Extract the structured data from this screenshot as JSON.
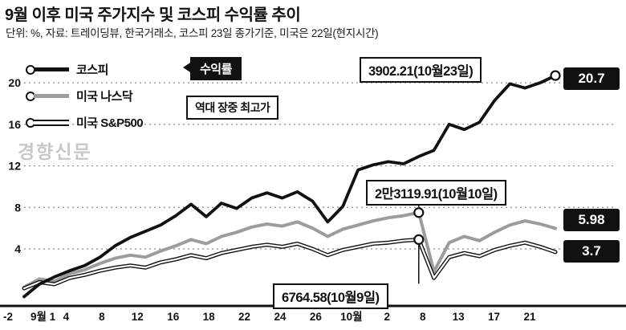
{
  "header": {
    "title": "9월 이후 미국 주가지수 및 코스피 수익률 추이",
    "subtitle": "단위: %, 자료: 트레이딩뷰, 한국거래소, 코스피 23일 종가기준, 미국은 22일(현지시간)"
  },
  "badges": {
    "return_label": "수익률",
    "record_high_label": "역대 장중 최고가"
  },
  "watermark": "경향신문",
  "chart_data": {
    "type": "line",
    "title": "9월 이후 미국 주가지수 및 코스피 수익률 추이",
    "unit": "%",
    "ylim": [
      -2,
      22
    ],
    "y_ticks": [
      "20",
      "16",
      "12",
      "8",
      "4"
    ],
    "y_min_label": "-2",
    "x_ticks": [
      "9월 1",
      "4",
      "8",
      "12",
      "16",
      "18",
      "22",
      "24",
      "26",
      "10월",
      "2",
      "8",
      "13",
      "17",
      "21"
    ],
    "grid": "dotted-horizontal",
    "legend_position": "top-left",
    "series": [
      {
        "name": "코스피",
        "color": "#111111",
        "end_label": "20.7",
        "end_value": 20.7,
        "peak_label": "3902.21(10월23일)",
        "values": [
          -0.6,
          0.6,
          1.3,
          1.9,
          2.4,
          3.2,
          4.3,
          5.1,
          5.7,
          6.3,
          7.2,
          8.3,
          7.1,
          8.4,
          7.9,
          8.9,
          9.4,
          8.9,
          9.5,
          8.6,
          6.6,
          8.1,
          11.6,
          12.1,
          12.4,
          12.2,
          12.9,
          13.5,
          16.0,
          15.5,
          16.2,
          18.3,
          19.9,
          19.5,
          20.0,
          20.7
        ]
      },
      {
        "name": "미국 나스닥",
        "color": "#9c9c9c",
        "end_label": "5.98",
        "end_value": 5.98,
        "peak_label": "2만3119.91(10월10일)",
        "values": [
          0.3,
          1.1,
          0.9,
          1.6,
          2.0,
          2.6,
          3.1,
          3.4,
          3.2,
          3.8,
          4.3,
          4.9,
          4.5,
          5.2,
          5.6,
          6.1,
          6.4,
          6.2,
          6.6,
          6.0,
          5.2,
          5.9,
          6.3,
          6.7,
          7.0,
          7.2,
          7.5,
          1.8,
          4.6,
          5.2,
          4.8,
          5.6,
          6.3,
          6.7,
          6.4,
          5.98
        ]
      },
      {
        "name": "미국 S&P500",
        "color": "#111111",
        "core_color": "#ffffff",
        "end_label": "3.7",
        "end_value": 3.7,
        "peak_label": "6764.58(10월9일)",
        "values": [
          0.2,
          0.8,
          0.6,
          1.2,
          1.5,
          1.9,
          2.2,
          2.4,
          2.2,
          2.7,
          3.0,
          3.4,
          3.1,
          3.6,
          3.9,
          4.2,
          4.4,
          4.2,
          4.5,
          4.0,
          3.4,
          3.9,
          4.2,
          4.5,
          4.6,
          4.8,
          4.9,
          1.2,
          3.2,
          3.6,
          3.3,
          3.9,
          4.3,
          4.6,
          4.2,
          3.7
        ]
      }
    ],
    "markers": [
      {
        "series": 0,
        "index": 35,
        "connector": null
      },
      {
        "series": 1,
        "index": 26,
        "connector": [
          -7,
          -15
        ]
      },
      {
        "series": 2,
        "index": 26,
        "connector": [
          7,
          55
        ]
      }
    ]
  }
}
